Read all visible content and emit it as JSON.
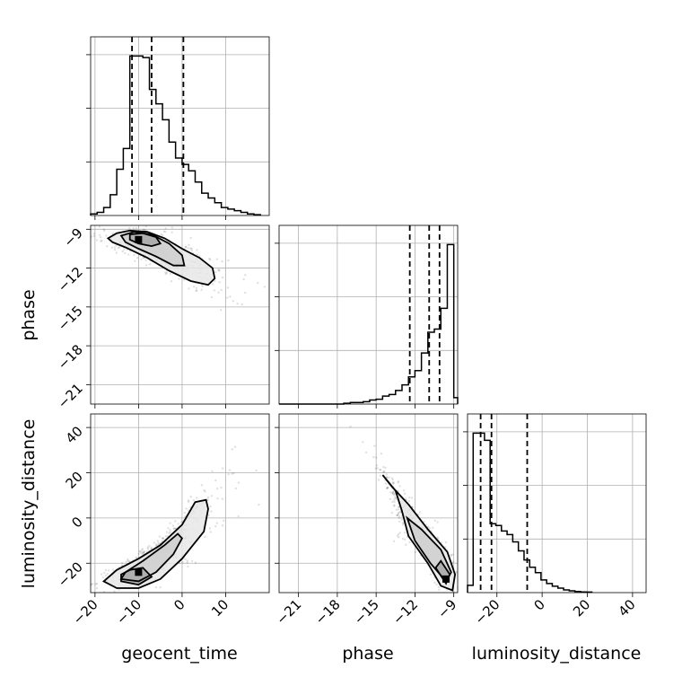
{
  "chart_data": {
    "type": "corner",
    "parameters": [
      "geocent_time",
      "phase",
      "luminosity_distance"
    ],
    "axes": {
      "geocent_time": {
        "label": "geocent_time",
        "range": [
          -21,
          20
        ],
        "ticks": [
          -20,
          -10,
          0,
          10
        ]
      },
      "phase": {
        "label": "phase",
        "range": [
          -22.5,
          -8.7
        ],
        "ticks": [
          -21,
          -18,
          -15,
          -12,
          -9
        ]
      },
      "luminosity_distance": {
        "label": "luminosity_distance",
        "range": [
          -33,
          46
        ],
        "ticks": [
          -20,
          0,
          20,
          40
        ]
      }
    },
    "grid": true,
    "histograms": [
      {
        "parameter": "geocent_time",
        "bin_edges": [
          -21,
          -19.5,
          -18,
          -16.5,
          -15,
          -13.5,
          -12,
          -10.5,
          -9,
          -7.5,
          -6,
          -4.5,
          -3,
          -1.5,
          0,
          1.5,
          3,
          4.5,
          6,
          7.5,
          9,
          10.5,
          12,
          13.5,
          15,
          16.5,
          18
        ],
        "counts": [
          0.01,
          0.02,
          0.05,
          0.13,
          0.29,
          0.42,
          1.0,
          1.0,
          0.99,
          0.79,
          0.7,
          0.6,
          0.46,
          0.36,
          0.32,
          0.28,
          0.21,
          0.14,
          0.11,
          0.08,
          0.05,
          0.04,
          0.03,
          0.02,
          0.01,
          0.005
        ],
        "quantiles": [
          -11.5,
          -7,
          0.3
        ]
      },
      {
        "parameter": "phase",
        "bin_edges": [
          -22.5,
          -22,
          -21.5,
          -21,
          -20.5,
          -20,
          -19.5,
          -19,
          -18.5,
          -18,
          -17.5,
          -17,
          -16.5,
          -16,
          -15.5,
          -15,
          -14.5,
          -14,
          -13.5,
          -13,
          -12.5,
          -12,
          -11.5,
          -11,
          -10.5,
          -10,
          -9.5,
          -9,
          -8.7
        ],
        "counts": [
          0,
          0,
          0,
          0,
          0,
          0,
          0,
          0,
          0,
          0,
          0.005,
          0.01,
          0.01,
          0.015,
          0.025,
          0.03,
          0.05,
          0.06,
          0.085,
          0.12,
          0.17,
          0.21,
          0.32,
          0.45,
          0.47,
          0.6,
          1.0,
          0.04
        ],
        "quantiles": [
          -12.4,
          -10.9,
          -10.1
        ]
      },
      {
        "parameter": "luminosity_distance",
        "bin_edges": [
          -33,
          -30.5,
          -28,
          -25.5,
          -23,
          -20.5,
          -18,
          -15.5,
          -13,
          -10.5,
          -8,
          -5.5,
          -3,
          -0.5,
          2,
          4.5,
          7,
          9.5,
          12,
          14.5,
          17,
          19.5,
          22
        ],
        "counts": [
          0.04,
          0.88,
          0.88,
          0.84,
          0.38,
          0.37,
          0.34,
          0.32,
          0.28,
          0.23,
          0.18,
          0.14,
          0.11,
          0.07,
          0.05,
          0.035,
          0.025,
          0.015,
          0.01,
          0.006,
          0.004,
          0.003
        ],
        "quantiles": [
          -27.2,
          -22.4,
          -6.6
        ]
      }
    ],
    "scatter_panels": [
      {
        "x": "geocent_time",
        "y": "phase",
        "density_peak": [
          -10,
          -9.8
        ],
        "contours": [
          [
            [
              -17,
              -9.7
            ],
            [
              -15,
              -9.3
            ],
            [
              -12,
              -9.1
            ],
            [
              -8,
              -9.2
            ],
            [
              -4,
              -9.7
            ],
            [
              0,
              -10.5
            ],
            [
              4,
              -11.2
            ],
            [
              7,
              -12.0
            ],
            [
              7.5,
              -12.8
            ],
            [
              6,
              -13.3
            ],
            [
              2,
              -13.0
            ],
            [
              -3,
              -12.2
            ],
            [
              -8,
              -11.2
            ],
            [
              -13,
              -10.4
            ],
            [
              -16,
              -10.0
            ]
          ],
          [
            [
              -14,
              -9.5
            ],
            [
              -11,
              -9.2
            ],
            [
              -7,
              -9.4
            ],
            [
              -3,
              -10.1
            ],
            [
              0,
              -11.0
            ],
            [
              0.5,
              -11.8
            ],
            [
              -2,
              -11.8
            ],
            [
              -6,
              -11.1
            ],
            [
              -10,
              -10.5
            ],
            [
              -13,
              -10.0
            ]
          ],
          [
            [
              -12,
              -9.4
            ],
            [
              -9,
              -9.3
            ],
            [
              -6,
              -9.6
            ],
            [
              -5,
              -10.1
            ],
            [
              -7,
              -10.3
            ],
            [
              -10,
              -10.1
            ],
            [
              -12,
              -9.8
            ]
          ]
        ]
      },
      {
        "x": "geocent_time",
        "y": "luminosity_distance",
        "density_peak": [
          -10,
          -24
        ],
        "contours": [
          [
            [
              -18,
              -28
            ],
            [
              -15,
              -31
            ],
            [
              -10,
              -31
            ],
            [
              -5,
              -27
            ],
            [
              0,
              -18
            ],
            [
              5,
              -6
            ],
            [
              6,
              4
            ],
            [
              5.5,
              8
            ],
            [
              3,
              7
            ],
            [
              0,
              -3
            ],
            [
              -5,
              -12
            ],
            [
              -10,
              -18
            ],
            [
              -15,
              -23
            ]
          ],
          [
            [
              -14,
              -27
            ],
            [
              -10,
              -28
            ],
            [
              -6,
              -24
            ],
            [
              -2,
              -16
            ],
            [
              0,
              -9
            ],
            [
              -1,
              -7
            ],
            [
              -4,
              -12
            ],
            [
              -9,
              -19
            ],
            [
              -13,
              -24
            ]
          ],
          [
            [
              -14,
              -28
            ],
            [
              -10,
              -29.5
            ],
            [
              -7,
              -26
            ],
            [
              -9,
              -22
            ],
            [
              -12,
              -23
            ],
            [
              -14,
              -25
            ]
          ]
        ]
      },
      {
        "x": "phase",
        "y": "luminosity_distance",
        "density_peak": [
          -9.6,
          -27
        ],
        "contours": [
          [
            [
              -14.5,
              19
            ],
            [
              -13.5,
              12
            ],
            [
              -13,
              3
            ],
            [
              -12.5,
              -8
            ],
            [
              -11,
              -20
            ],
            [
              -10.0,
              -30
            ],
            [
              -9.1,
              -32
            ],
            [
              -8.9,
              -25
            ],
            [
              -9.5,
              -15
            ],
            [
              -11,
              -5
            ],
            [
              -12.5,
              6
            ],
            [
              -13.8,
              14
            ]
          ],
          [
            [
              -12.6,
              0
            ],
            [
              -12,
              -10
            ],
            [
              -10.8,
              -20
            ],
            [
              -9.6,
              -28
            ],
            [
              -9.2,
              -24
            ],
            [
              -10,
              -14
            ],
            [
              -11.5,
              -5
            ]
          ],
          [
            [
              -10.4,
              -22
            ],
            [
              -9.6,
              -29
            ],
            [
              -9.3,
              -25
            ],
            [
              -10,
              -19
            ]
          ]
        ]
      }
    ]
  }
}
